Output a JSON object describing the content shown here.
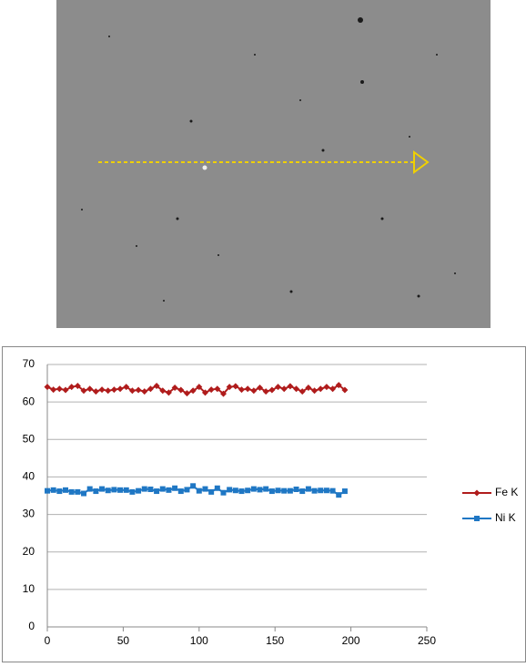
{
  "chart_data": {
    "type": "line",
    "x": [
      0,
      4,
      8,
      12,
      16,
      20,
      24,
      28,
      32,
      36,
      40,
      44,
      48,
      52,
      56,
      60,
      64,
      68,
      72,
      76,
      80,
      84,
      88,
      92,
      96,
      100,
      104,
      108,
      112,
      116,
      120,
      124,
      128,
      132,
      136,
      140,
      144,
      148,
      152,
      156,
      160,
      164,
      168,
      172,
      176,
      180,
      184,
      188,
      192,
      196
    ],
    "series": [
      {
        "name": "Fe K",
        "color": "#b01c1c",
        "marker": "diamond",
        "values": [
          64,
          63.3,
          63.5,
          63.2,
          64,
          64.3,
          63,
          63.5,
          62.8,
          63.3,
          63,
          63.3,
          63.5,
          64,
          63,
          63.2,
          62.8,
          63.5,
          64.3,
          63,
          62.5,
          63.8,
          63.2,
          62.3,
          63,
          64,
          62.5,
          63.3,
          63.5,
          62.2,
          64,
          64.2,
          63.3,
          63.5,
          63,
          63.8,
          62.8,
          63.2,
          64,
          63.5,
          64.2,
          63.5,
          62.8,
          63.8,
          63,
          63.5,
          64,
          63.5,
          64.5,
          63.2
        ]
      },
      {
        "name": "Ni K",
        "color": "#1f77c4",
        "marker": "square",
        "values": [
          36.3,
          36.5,
          36.2,
          36.5,
          36,
          36,
          35.6,
          36.8,
          36.2,
          36.8,
          36.4,
          36.6,
          36.5,
          36.5,
          36,
          36.3,
          36.8,
          36.7,
          36.2,
          36.8,
          36.5,
          37,
          36.2,
          36.6,
          37.6,
          36.3,
          36.8,
          36,
          37,
          35.8,
          36.6,
          36.4,
          36.2,
          36.4,
          36.8,
          36.6,
          36.8,
          36.2,
          36.4,
          36.3,
          36.3,
          36.7,
          36.2,
          36.8,
          36.3,
          36.4,
          36.4,
          36.3,
          35.2,
          36.2
        ]
      }
    ],
    "xlim": [
      0,
      250
    ],
    "xticks": [
      0,
      50,
      100,
      150,
      200,
      250
    ],
    "ylim": [
      0,
      70
    ],
    "yticks": [
      0,
      10,
      20,
      30,
      40,
      50,
      60,
      70
    ],
    "grid": true,
    "legend": "right"
  }
}
